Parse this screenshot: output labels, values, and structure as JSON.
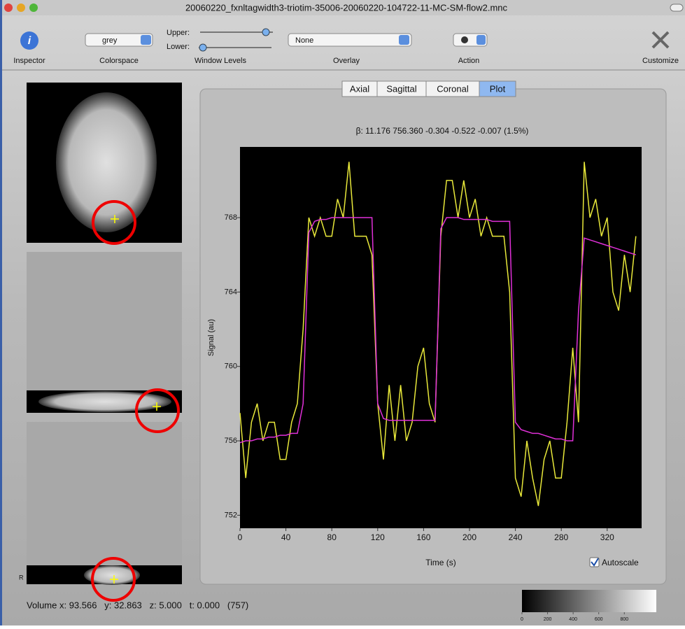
{
  "window": {
    "title": "20060220_fxnltagwidth3-triotim-35006-20060220-104722-11-MC-SM-flow2.mnc"
  },
  "toolbar": {
    "inspector": "Inspector",
    "colorspace": {
      "label": "Colorspace",
      "value": "grey"
    },
    "window_levels": {
      "label": "Window Levels",
      "upper": "Upper:",
      "lower": "Lower:"
    },
    "overlay": {
      "label": "Overlay",
      "value": "None"
    },
    "action": "Action",
    "customize": "Customize"
  },
  "tabs": [
    "Axial",
    "Sagittal",
    "Coronal",
    "Plot"
  ],
  "beta_text": "β: 11.176  756.360  -0.304  -0.522  -0.007  (1.5%)",
  "chart_data": {
    "type": "line",
    "x_label": "Time (s)",
    "y_label": "Signal (au)",
    "background": "#000000",
    "x": [
      0,
      5,
      10,
      15,
      20,
      25,
      30,
      35,
      40,
      45,
      50,
      55,
      60,
      65,
      70,
      75,
      80,
      85,
      90,
      95,
      100,
      105,
      110,
      115,
      120,
      125,
      130,
      135,
      140,
      145,
      150,
      155,
      160,
      165,
      170,
      175,
      180,
      185,
      190,
      195,
      200,
      205,
      210,
      215,
      220,
      225,
      230,
      235,
      240,
      245,
      250,
      255,
      260,
      265,
      270,
      275,
      280,
      285,
      290,
      295,
      300,
      305,
      310,
      315,
      320,
      325,
      330,
      335,
      340,
      345
    ],
    "series": [
      {
        "color": "#e8e83a",
        "values": [
          757.5,
          754,
          757,
          758,
          756,
          757,
          757,
          755,
          755,
          757,
          758,
          762,
          768,
          767,
          768,
          767,
          767,
          769,
          768,
          771,
          767,
          767,
          767,
          766,
          758,
          755,
          759,
          756,
          759,
          756,
          757,
          760,
          761,
          758,
          757,
          767,
          770,
          770,
          768,
          770,
          768,
          769,
          767,
          768,
          767,
          767,
          767,
          764,
          754,
          753,
          756,
          754,
          752.5,
          755,
          756,
          754,
          754,
          757,
          761,
          757,
          771,
          768,
          769,
          767,
          768,
          764,
          763,
          766,
          764,
          767
        ]
      },
      {
        "color": "#e030d8",
        "values": [
          755.9,
          756,
          756,
          756.1,
          756.1,
          756.2,
          756.2,
          756.3,
          756.3,
          756.4,
          756.4,
          758,
          767.2,
          767.8,
          767.9,
          767.9,
          768,
          768,
          768,
          768,
          768,
          768,
          768,
          768,
          758,
          757.2,
          757.1,
          757.1,
          757.1,
          757.1,
          757.1,
          757.1,
          757.1,
          757.1,
          757.1,
          767.4,
          768,
          768,
          768,
          767.9,
          767.9,
          767.9,
          767.9,
          767.9,
          767.8,
          767.8,
          767.8,
          767.8,
          757,
          756.6,
          756.5,
          756.4,
          756.4,
          756.3,
          756.2,
          756.1,
          756.1,
          756,
          756,
          763,
          766.9,
          766.8,
          766.7,
          766.6,
          766.5,
          766.4,
          766.3,
          766.2,
          766.1,
          766
        ]
      }
    ],
    "xlim": [
      0,
      350
    ],
    "ylim": [
      751.3,
      771.8
    ],
    "xticks": [
      0,
      40,
      80,
      120,
      160,
      200,
      240,
      280,
      320
    ],
    "yticks": [
      752,
      756,
      760,
      764,
      768
    ]
  },
  "autoscale": "Autoscale",
  "orientation_label": "R",
  "status": "Volume x: 93.566   y: 32.863   z: 5.000   t: 0.000   (757)",
  "colorbar": {
    "lim": [
      0,
      1050
    ],
    "ticks": [
      0,
      200,
      400,
      600,
      800
    ]
  }
}
